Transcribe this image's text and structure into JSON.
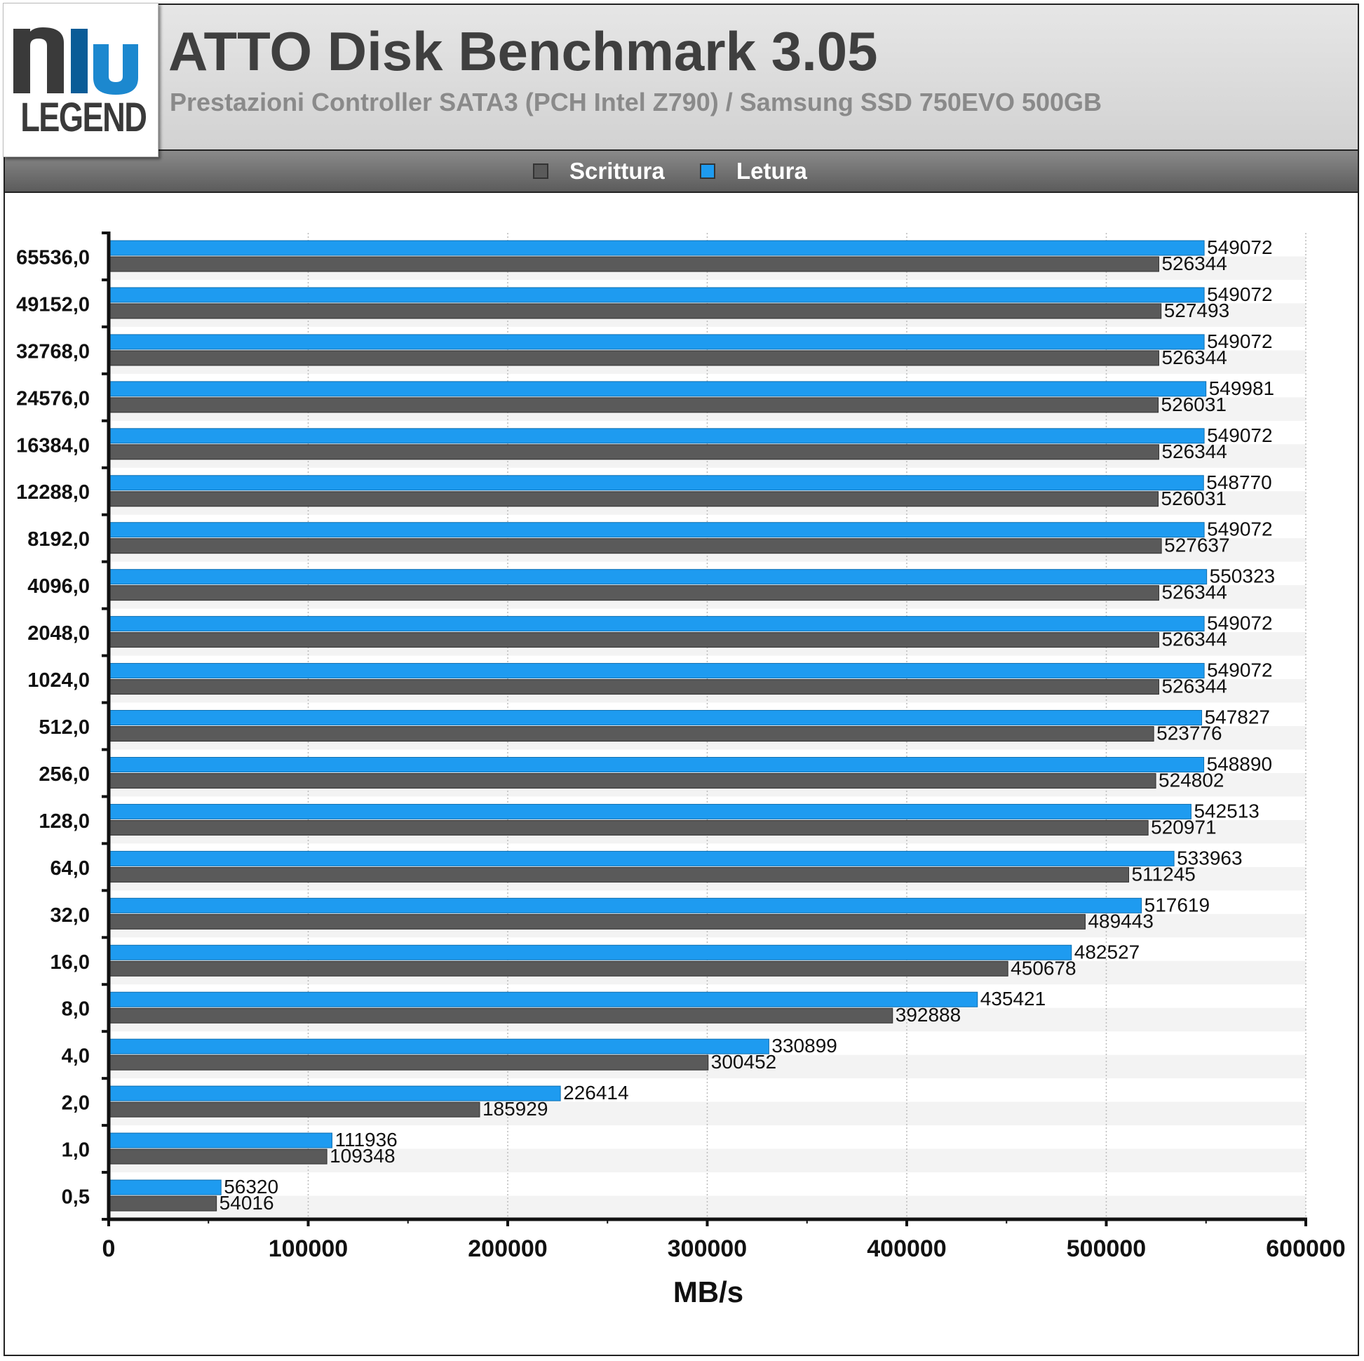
{
  "header": {
    "logo_text": "LEGEND",
    "title": "ATTO Disk Benchmark 3.05",
    "subtitle": "Prestazioni Controller SATA3 (PCH Intel Z790) / Samsung SSD 750EVO 500GB"
  },
  "legend": {
    "items": [
      {
        "label": "Scrittura",
        "color": "#5a5a5a"
      },
      {
        "label": "Letura",
        "color": "#1e9bf0"
      }
    ],
    "placement": "top"
  },
  "colors": {
    "scrittura": "#5a5a5a",
    "letura": "#1e9bf0",
    "grid": "#bcbcbc",
    "band": "#f3f3f3"
  },
  "chart_data": {
    "type": "bar",
    "orientation": "horizontal",
    "title": "ATTO Disk Benchmark 3.05",
    "subtitle": "Prestazioni Controller SATA3 (PCH Intel Z790) / Samsung SSD 750EVO 500GB",
    "xlabel": "MB/s",
    "ylabel": "",
    "xlim": [
      0,
      600000
    ],
    "x_ticks": [
      "0",
      "100000",
      "200000",
      "300000",
      "400000",
      "500000",
      "600000"
    ],
    "grid": true,
    "categories": [
      "65536,0",
      "49152,0",
      "32768,0",
      "24576,0",
      "16384,0",
      "12288,0",
      "8192,0",
      "4096,0",
      "2048,0",
      "1024,0",
      "512,0",
      "256,0",
      "128,0",
      "64,0",
      "32,0",
      "16,0",
      "8,0",
      "4,0",
      "2,0",
      "1,0",
      "0,5"
    ],
    "series": [
      {
        "name": "Letura",
        "values": [
          549072,
          549072,
          549072,
          549981,
          549072,
          548770,
          549072,
          550323,
          549072,
          549072,
          547827,
          548890,
          542513,
          533963,
          517619,
          482527,
          435421,
          330899,
          226414,
          111936,
          56320
        ]
      },
      {
        "name": "Scrittura",
        "values": [
          526344,
          527493,
          526344,
          526031,
          526344,
          526031,
          527637,
          526344,
          526344,
          526344,
          523776,
          524802,
          520971,
          511245,
          489443,
          450678,
          392888,
          300452,
          185929,
          109348,
          54016
        ]
      }
    ]
  }
}
